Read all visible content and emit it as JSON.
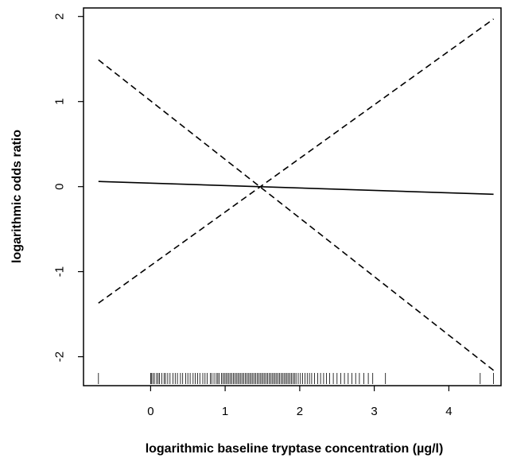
{
  "chart_data": {
    "type": "line",
    "title": "",
    "xlabel": "logarithmic baseline tryptase concentration (µg/l)",
    "ylabel": "logarithmic odds ratio",
    "xlim": [
      -0.9,
      4.7
    ],
    "ylim": [
      -2.34,
      2.1
    ],
    "x_ticks": [
      0,
      1,
      2,
      3,
      4
    ],
    "y_ticks": [
      -2,
      -1,
      0,
      1,
      2
    ],
    "x_tick_labels": [
      "0",
      "1",
      "2",
      "3",
      "4"
    ],
    "y_tick_labels": [
      "-2",
      "-1",
      "0",
      "1",
      "2"
    ],
    "grid": false,
    "legend": "none",
    "series": [
      {
        "style": "solid",
        "x": [
          -0.7,
          4.6
        ],
        "y": [
          0.06,
          -0.09
        ]
      },
      {
        "style": "dashed",
        "x": [
          -0.7,
          4.6
        ],
        "y": [
          -1.37,
          1.97
        ]
      },
      {
        "style": "dashed",
        "x": [
          -0.7,
          4.6
        ],
        "y": [
          1.49,
          -2.16
        ]
      }
    ],
    "rug": [
      -0.7,
      0.0,
      0.01,
      0.03,
      0.05,
      0.08,
      0.1,
      0.12,
      0.15,
      0.18,
      0.2,
      0.23,
      0.26,
      0.3,
      0.33,
      0.36,
      0.4,
      0.43,
      0.47,
      0.5,
      0.53,
      0.57,
      0.6,
      0.63,
      0.66,
      0.7,
      0.73,
      0.76,
      0.8,
      0.82,
      0.85,
      0.88,
      0.9,
      0.92,
      0.95,
      0.97,
      0.99,
      1.01,
      1.03,
      1.05,
      1.07,
      1.09,
      1.11,
      1.13,
      1.15,
      1.17,
      1.19,
      1.21,
      1.23,
      1.25,
      1.27,
      1.29,
      1.31,
      1.33,
      1.35,
      1.37,
      1.39,
      1.41,
      1.43,
      1.45,
      1.47,
      1.49,
      1.51,
      1.53,
      1.55,
      1.57,
      1.59,
      1.61,
      1.63,
      1.65,
      1.67,
      1.69,
      1.71,
      1.73,
      1.75,
      1.77,
      1.79,
      1.81,
      1.83,
      1.85,
      1.87,
      1.89,
      1.91,
      1.93,
      1.95,
      1.98,
      2.01,
      2.04,
      2.07,
      2.1,
      2.13,
      2.16,
      2.2,
      2.24,
      2.28,
      2.32,
      2.36,
      2.4,
      2.45,
      2.5,
      2.55,
      2.6,
      2.65,
      2.7,
      2.75,
      2.8,
      2.86,
      2.92,
      2.98,
      3.15,
      4.42,
      4.6
    ]
  }
}
